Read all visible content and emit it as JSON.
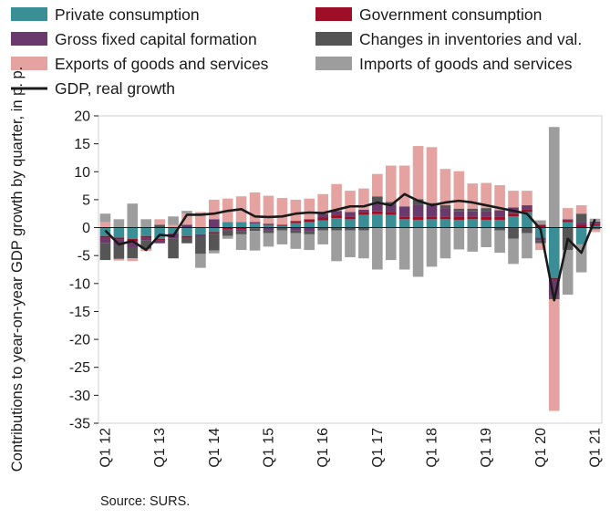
{
  "colors": {
    "private": "#3a8e95",
    "government": "#9c0f26",
    "gfcf": "#6a3a6c",
    "inventories": "#555555",
    "exports": "#e4a3a1",
    "imports": "#9d9d9d",
    "gdp": "#1a1a1a"
  },
  "chart_data": {
    "type": "bar",
    "stacked": true,
    "ylabel": "Contributions to year-on-year GDP growth by quarter, in p. p.",
    "ylim": [
      -35,
      20
    ],
    "yticks": [
      "20",
      "15",
      "10",
      "5",
      "0",
      "-5",
      "-10",
      "-15",
      "-20",
      "-25",
      "-30",
      "-35"
    ],
    "yticks_values": [
      20,
      15,
      10,
      5,
      0,
      -5,
      -10,
      -15,
      -20,
      -25,
      -30,
      -35
    ],
    "grid": false,
    "legend_placement": "top",
    "x_tick_labels": [
      {
        "label": "Q1 12",
        "index": 0
      },
      {
        "label": "Q1 13",
        "index": 4
      },
      {
        "label": "Q1 14",
        "index": 8
      },
      {
        "label": "Q1 15",
        "index": 12
      },
      {
        "label": "Q1 16",
        "index": 16
      },
      {
        "label": "Q1 17",
        "index": 20
      },
      {
        "label": "Q1 18",
        "index": 24
      },
      {
        "label": "Q1 19",
        "index": 28
      },
      {
        "label": "Q1 20",
        "index": 32
      },
      {
        "label": "Q1 21",
        "index": 36
      }
    ],
    "categories": [
      "Q1 12",
      "Q2 12",
      "Q3 12",
      "Q4 12",
      "Q1 13",
      "Q2 13",
      "Q3 13",
      "Q4 13",
      "Q1 14",
      "Q2 14",
      "Q3 14",
      "Q4 14",
      "Q1 15",
      "Q2 15",
      "Q3 15",
      "Q4 15",
      "Q1 16",
      "Q2 16",
      "Q3 16",
      "Q4 16",
      "Q1 17",
      "Q2 17",
      "Q3 17",
      "Q4 17",
      "Q1 18",
      "Q2 18",
      "Q3 18",
      "Q4 18",
      "Q1 19",
      "Q2 19",
      "Q3 19",
      "Q4 19",
      "Q1 20",
      "Q2 20",
      "Q3 20",
      "Q4 20",
      "Q1 21"
    ],
    "series": [
      {
        "name": "Private consumption",
        "key": "private",
        "values": [
          -1.5,
          -1.8,
          -2.0,
          -1.5,
          -2.0,
          -1.0,
          -1.5,
          -1.2,
          -0.8,
          1.0,
          1.0,
          0.7,
          0.5,
          0.3,
          0.8,
          1.0,
          1.3,
          1.7,
          1.5,
          2.3,
          2.4,
          2.3,
          1.5,
          1.4,
          1.5,
          1.5,
          1.4,
          1.5,
          1.4,
          1.4,
          2.0,
          2.8,
          -1.8,
          -9.0,
          1.0,
          -3.0,
          0.3
        ]
      },
      {
        "name": "Government consumption",
        "key": "government",
        "values": [
          -0.3,
          -0.3,
          -0.5,
          -0.3,
          -0.3,
          0.0,
          -0.3,
          0.0,
          -0.3,
          -0.3,
          -0.3,
          -0.1,
          0.2,
          0.2,
          0.4,
          0.5,
          0.5,
          0.5,
          0.5,
          0.5,
          0.5,
          0.5,
          0.5,
          0.5,
          0.5,
          0.5,
          0.5,
          0.5,
          0.5,
          0.5,
          0.5,
          0.5,
          0.5,
          -0.3,
          0.3,
          0.5,
          0.3
        ]
      },
      {
        "name": "Gross fixed capital formation",
        "key": "gfcf",
        "values": [
          -1.0,
          -1.0,
          -1.0,
          -0.5,
          -0.5,
          -1.0,
          0.5,
          -0.5,
          1.5,
          -0.2,
          -0.4,
          0.3,
          -0.5,
          0.0,
          -0.5,
          -0.7,
          0.7,
          0.8,
          0.8,
          0.4,
          1.7,
          1.3,
          1.8,
          2.2,
          1.9,
          1.5,
          1.0,
          0.9,
          1.1,
          1.2,
          1.1,
          0.7,
          -0.5,
          -3.0,
          0.2,
          0.5,
          0.5
        ]
      },
      {
        "name": "Changes in inventories and val.",
        "key": "inventories",
        "values": [
          -3.0,
          -2.5,
          -2.0,
          -1.5,
          0.5,
          -3.5,
          -1.0,
          -3.0,
          -3.0,
          -1.0,
          -0.5,
          -0.5,
          -0.5,
          -0.5,
          -0.5,
          -0.5,
          -0.5,
          -0.5,
          -0.5,
          -0.5,
          1.0,
          0.5,
          0.0,
          1.0,
          0.5,
          0.5,
          0.5,
          0.5,
          0.5,
          -0.5,
          -2.0,
          -1.0,
          -0.5,
          -0.5,
          -4.0,
          1.5,
          -0.3
        ]
      },
      {
        "name": "Exports of goods and services",
        "key": "exports",
        "values": [
          1.0,
          -0.3,
          -0.5,
          -0.4,
          1.0,
          0.5,
          2.0,
          2.8,
          3.5,
          4.2,
          4.6,
          5.3,
          5.0,
          4.8,
          3.8,
          3.7,
          3.5,
          4.8,
          3.8,
          3.8,
          4.0,
          6.5,
          7.3,
          9.5,
          10.0,
          6.5,
          6.7,
          4.5,
          4.5,
          4.5,
          3.0,
          2.6,
          -1.2,
          -20.0,
          2.0,
          1.5,
          -0.5
        ]
      },
      {
        "name": "Imports of goods and services",
        "key": "imports",
        "values": [
          1.5,
          1.5,
          4.3,
          1.5,
          0.0,
          1.5,
          0.5,
          -2.5,
          -0.5,
          -0.5,
          -2.8,
          -3.5,
          -2.4,
          -2.5,
          -2.8,
          -2.8,
          -2.5,
          -5.5,
          -4.8,
          -5.0,
          -7.5,
          -5.8,
          -7.5,
          -8.8,
          -7.0,
          -5.5,
          -3.9,
          -4.3,
          -3.5,
          -4.0,
          -4.5,
          -4.5,
          0.8,
          18.0,
          -8.0,
          -5.0,
          0.5
        ]
      }
    ],
    "line": {
      "name": "GDP, real growth",
      "key": "gdp",
      "values": [
        -0.5,
        -3.0,
        -2.4,
        -4.0,
        -1.3,
        -1.5,
        2.3,
        2.3,
        2.5,
        3.0,
        3.3,
        2.0,
        1.9,
        2.0,
        2.5,
        2.7,
        2.6,
        3.2,
        3.8,
        3.8,
        4.5,
        4.0,
        6.0,
        4.8,
        4.0,
        4.5,
        4.8,
        4.5,
        4.0,
        3.5,
        3.0,
        2.5,
        -0.3,
        -13.0,
        -2.0,
        -4.5,
        1.5
      ]
    }
  },
  "source": "Source: SURS."
}
